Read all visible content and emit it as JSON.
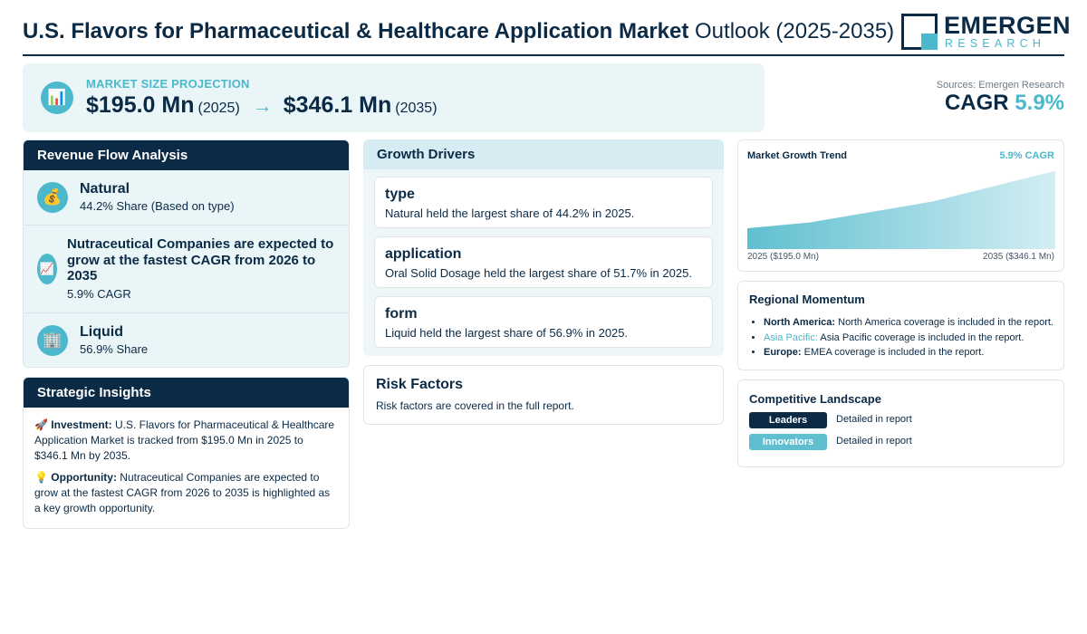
{
  "header": {
    "title_strong": "U.S. Flavors for Pharmaceutical & Healthcare Application Market",
    "title_light": "Outlook (2025-2035)",
    "logo_word": "EMERGEN",
    "logo_sub": "RESEARCH"
  },
  "projection": {
    "label": "MARKET SIZE PROJECTION",
    "start_value": "$195.0 Mn",
    "start_year": "(2025)",
    "arrow": "→",
    "end_value": "$346.1 Mn",
    "end_year": "(2035)",
    "icon": "bar-chart-icon"
  },
  "sources": "Sources: Emergen Research",
  "cagr": {
    "label": "CAGR",
    "value": "5.9%"
  },
  "revenue_flow": {
    "title": "Revenue Flow Analysis",
    "items": [
      {
        "icon": "money-bag-icon",
        "title": "Natural",
        "sub": "44.2% Share (Based on type)"
      },
      {
        "icon": "trend-chart-icon",
        "title": "Nutraceutical Companies are expected to grow at the fastest CAGR from 2026 to 2035",
        "sub": "5.9% CAGR"
      },
      {
        "icon": "building-icon",
        "title": "Liquid",
        "sub": "56.9% Share"
      }
    ]
  },
  "strategic": {
    "title": "Strategic Insights",
    "investment_label": "Investment:",
    "investment_text": "U.S. Flavors for Pharmaceutical & Healthcare Application Market is tracked from $195.0 Mn in 2025 to $346.1 Mn by 2035.",
    "opportunity_label": "Opportunity:",
    "opportunity_text": "Nutraceutical Companies are expected to grow at the fastest CAGR from 2026 to 2035 is highlighted as a key growth opportunity."
  },
  "drivers": {
    "title": "Growth Drivers",
    "items": [
      {
        "title": "type",
        "text": "Natural held the largest share of 44.2% in 2025."
      },
      {
        "title": "application",
        "text": "Oral Solid Dosage held the largest share of 51.7% in 2025."
      },
      {
        "title": "form",
        "text": "Liquid held the largest share of 56.9% in 2025."
      }
    ]
  },
  "risk": {
    "title": "Risk Factors",
    "text": "Risk factors are covered in the full report."
  },
  "trend": {
    "title": "Market Growth Trend",
    "cagr": "5.9% CAGR",
    "start_label": "2025 ($195.0 Mn)",
    "end_label": "2035 ($346.1 Mn)"
  },
  "chart_data": {
    "type": "area",
    "x": [
      2025,
      2027,
      2031,
      2035
    ],
    "values": [
      195.0,
      210,
      265,
      346.1
    ],
    "ylim": [
      140,
      350
    ],
    "grid": false,
    "colors": {
      "fill_light": "#d3eef3",
      "fill_dark": "#5fbfd0"
    }
  },
  "regional": {
    "title": "Regional Momentum",
    "items": [
      {
        "name": "North America:",
        "text": "North America coverage is included in the report.",
        "accent": false
      },
      {
        "name": "Asia Pacific:",
        "text": "Asia Pacific coverage is included in the report.",
        "accent": true
      },
      {
        "name": "Europe:",
        "text": "EMEA coverage is included in the report.",
        "accent": false
      }
    ]
  },
  "competitive": {
    "title": "Competitive Landscape",
    "rows": [
      {
        "badge": "Leaders",
        "desc": "Detailed in report",
        "color": "#0b2a45"
      },
      {
        "badge": "Innovators",
        "desc": "Detailed in report",
        "color": "#5fbfd0"
      }
    ]
  },
  "colors": {
    "navy": "#0b2a45",
    "accent": "#4bb8cc",
    "panel": "#eaf5f7"
  }
}
